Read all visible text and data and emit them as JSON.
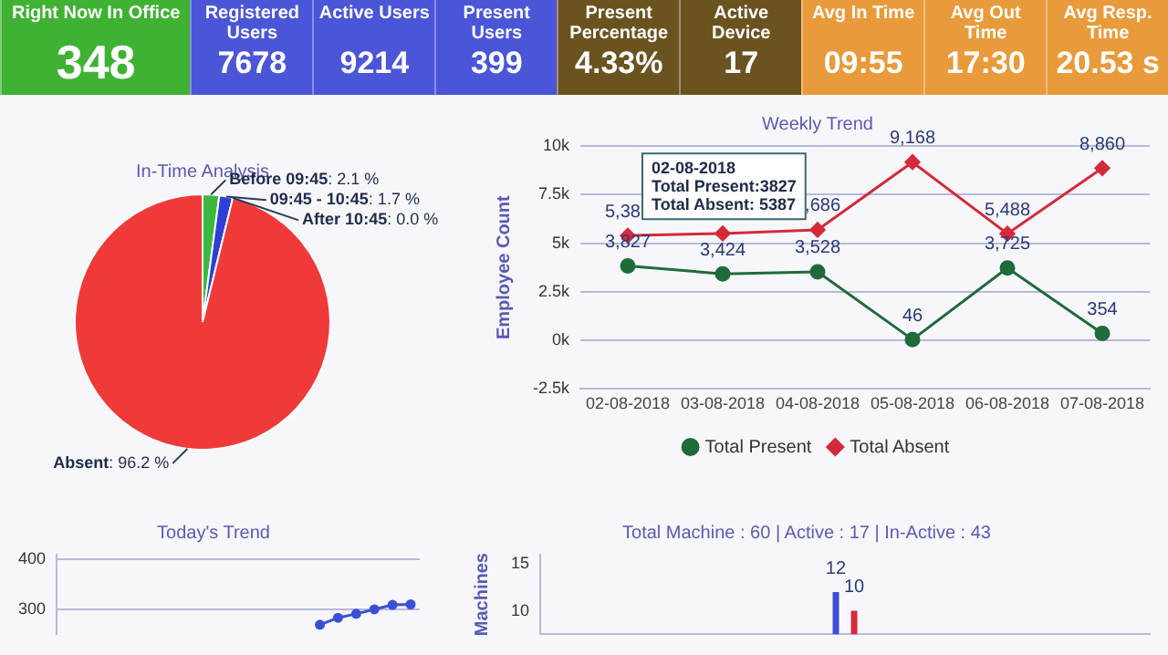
{
  "chart_data": [
    {
      "type": "other",
      "categories": [
        "Right Now In Office",
        "Registered Users",
        "Active Users",
        "Present Users",
        "Present Percentage",
        "Active Device",
        "Avg In Time",
        "Avg Out Time",
        "Avg Resp. Time"
      ],
      "value_labels": [
        "348",
        "7678",
        "9214",
        "399",
        "4.33%",
        "17",
        "09:55",
        "17:30",
        "20.53 s"
      ],
      "colors": [
        "#3fb233",
        "#4a55d8",
        "#4a55d8",
        "#4a55d8",
        "#6b5320",
        "#6b5320",
        "#e99a3a",
        "#e99a3a",
        "#e99a3a"
      ]
    },
    {
      "type": "pie",
      "title": "In-Time Analysis",
      "categories": [
        "Before 09:45",
        "09:45 - 10:45",
        "After 10:45",
        "Absent"
      ],
      "values": [
        2.1,
        1.7,
        0.0,
        96.2
      ],
      "colors": [
        "#3cb93c",
        "#2d3fd6",
        "#7a3fb0",
        "#f03a3a"
      ],
      "value_labels": [
        ": 2.1 %",
        ": 1.7 %",
        ": 0.0 %",
        ": 96.2 %"
      ]
    },
    {
      "type": "line",
      "title": "Weekly Trend",
      "ylabel": "Employee Count",
      "categories": [
        "02-08-2018",
        "03-08-2018",
        "04-08-2018",
        "05-08-2018",
        "06-08-2018",
        "07-08-2018"
      ],
      "series": [
        {
          "name": "Total Present",
          "color": "#1f6b3a",
          "marker": "circle",
          "values": [
            3827,
            3424,
            3528,
            46,
            3725,
            354
          ],
          "value_labels": [
            "3,827",
            "3,424",
            "3,528",
            "46",
            "3,725",
            "354"
          ]
        },
        {
          "name": "Total Absent",
          "color": "#d42a3a",
          "marker": "diamond",
          "values": [
            5387,
            5500,
            5686,
            9168,
            5488,
            8860
          ],
          "value_labels": [
            "5,387",
            null,
            "5,686",
            "9,168",
            "5,488",
            "8,860"
          ]
        }
      ],
      "ylim": [
        -2500,
        10000
      ],
      "yticks": [
        {
          "value": -2500,
          "label": "-2.5k"
        },
        {
          "value": 0,
          "label": "0k"
        },
        {
          "value": 2500,
          "label": "2.5k"
        },
        {
          "value": 5000,
          "label": "5k"
        },
        {
          "value": 7500,
          "label": "7.5k"
        },
        {
          "value": 10000,
          "label": "10k"
        }
      ],
      "grid": "y",
      "legend": "bottom",
      "annotations": [
        {
          "text": "02-08-2018\nTotal Present:3827\nTotal Absent: 5387",
          "x": "02-08-2018",
          "y": 5387
        }
      ]
    },
    {
      "type": "line",
      "title": "Today's Trend",
      "categories": [
        null,
        null,
        null,
        null,
        null,
        null,
        null,
        null,
        null,
        null,
        null,
        null,
        null,
        null,
        null,
        null,
        null,
        null,
        null,
        null
      ],
      "series": [
        {
          "color": "#3b4fd6",
          "values": [
            null,
            null,
            null,
            null,
            null,
            null,
            null,
            null,
            null,
            null,
            null,
            null,
            null,
            null,
            269,
            283,
            291,
            300,
            309,
            310
          ]
        }
      ],
      "marker": "circle",
      "ylim": [
        250,
        410
      ],
      "yticks": [
        300,
        400
      ],
      "grid": "y",
      "tick_labels": "y"
    },
    {
      "type": "bar",
      "title": "Total Machine : 60 | Active : 17 | In-Active : 43",
      "ylabel": "Machines",
      "categories": [
        null
      ],
      "series": [
        {
          "color": "#3b4fd6",
          "values": [
            12
          ]
        },
        {
          "color": "#d42a3a",
          "values": [
            10
          ]
        }
      ],
      "ylim": [
        7.5,
        16
      ],
      "yticks": [
        10,
        15
      ],
      "data_labels": true,
      "tick_labels": "y"
    }
  ]
}
